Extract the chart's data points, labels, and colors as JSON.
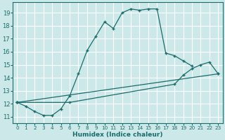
{
  "xlabel": "Humidex (Indice chaleur)",
  "bg_color": "#cce8e8",
  "grid_color": "#ffffff",
  "line_color": "#1a6b6b",
  "xlim": [
    -0.5,
    23.5
  ],
  "ylim": [
    10.5,
    19.8
  ],
  "yticks": [
    11,
    12,
    13,
    14,
    15,
    16,
    17,
    18,
    19
  ],
  "xticks": [
    0,
    1,
    2,
    3,
    4,
    5,
    6,
    7,
    8,
    9,
    10,
    11,
    12,
    13,
    14,
    15,
    16,
    17,
    18,
    19,
    20,
    21,
    22,
    23
  ],
  "line1_x": [
    0,
    1,
    2,
    3,
    4,
    5,
    6,
    7,
    8,
    9,
    10,
    11,
    12,
    13,
    14,
    15,
    16,
    17,
    18,
    19,
    20
  ],
  "line1_y": [
    12.1,
    11.8,
    11.4,
    11.1,
    11.1,
    11.6,
    12.6,
    14.3,
    16.1,
    17.2,
    18.3,
    17.8,
    19.0,
    19.3,
    19.2,
    19.3,
    19.3,
    15.9,
    15.7,
    15.3,
    14.9
  ],
  "line2_x": [
    0,
    6,
    18,
    19,
    20,
    21,
    22,
    23
  ],
  "line2_y": [
    12.1,
    12.1,
    13.5,
    14.2,
    14.7,
    15.0,
    15.2,
    14.3
  ],
  "line3_x": [
    0,
    23
  ],
  "line3_y": [
    12.1,
    14.3
  ]
}
